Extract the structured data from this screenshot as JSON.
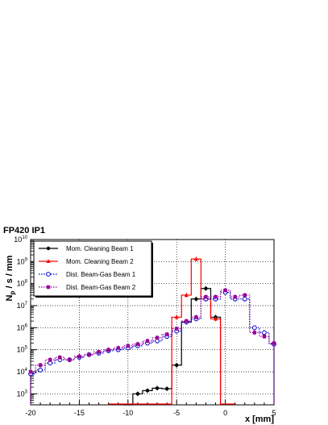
{
  "chart_data": {
    "type": "line",
    "title": "FP420 IP1",
    "xlabel": "x [mm]",
    "ylabel": "N_p / s / mm",
    "ylabel_main": "N",
    "ylabel_sub": "p",
    "ylabel_rest": " / s / mm",
    "xlim": [
      -20,
      5
    ],
    "ylim_log10": [
      2.5,
      10
    ],
    "log_y": true,
    "grid": true,
    "legend_position": "top-left",
    "x_ticks": [
      -20,
      -15,
      -10,
      -5,
      0,
      5
    ],
    "x_tick_labels": [
      "-20",
      "-15",
      "-10",
      "-5",
      "0",
      "5"
    ],
    "y_ticks_exp": [
      3,
      4,
      5,
      6,
      7,
      8,
      9,
      10
    ],
    "y_tick_base": "10",
    "series": [
      {
        "name": "Mom. Cleaning Beam 1",
        "color": "#000000",
        "marker": "circle-filled",
        "style": "solid",
        "bin_width": 1,
        "x": [
          -10,
          -9,
          -8,
          -7,
          -6,
          -5,
          -4,
          -3,
          -2,
          -1
        ],
        "y": [
          300,
          1000,
          1400,
          1800,
          1700,
          20000,
          1800000,
          20000000,
          60000000,
          3000000
        ]
      },
      {
        "name": "Mom. Cleaning Beam 2",
        "color": "#ff0000",
        "marker": "triangle-filled",
        "style": "solid",
        "bin_width": 1,
        "x": [
          -5,
          -4,
          -3,
          -2,
          -1
        ],
        "y": [
          3000000,
          30000000,
          1300000000,
          20000000,
          2500000
        ]
      },
      {
        "name": "Dist. Beam-Gas Beam 1",
        "color": "#0000cc",
        "marker": "circle-open",
        "style": "dotted",
        "bin_width": 1,
        "x": [
          -20,
          -19,
          -18,
          -17,
          -16,
          -15,
          -14,
          -13,
          -12,
          -11,
          -10,
          -9,
          -8,
          -7,
          -6,
          -5,
          -4,
          -3,
          -2,
          -1,
          0,
          1,
          2,
          3,
          4,
          5
        ],
        "y": [
          8000,
          12000,
          25000,
          35000,
          35000,
          45000,
          60000,
          70000,
          90000,
          100000,
          120000,
          150000,
          200000,
          250000,
          400000,
          700000,
          1800000,
          2500000,
          20000000,
          20000000,
          40000000,
          20000000,
          20000000,
          1000000,
          600000,
          180000
        ]
      },
      {
        "name": "Dist. Beam-Gas Beam 2",
        "color": "#990099",
        "marker": "square-filled",
        "style": "dotted",
        "bin_width": 1,
        "x": [
          -20,
          -19,
          -18,
          -17,
          -16,
          -15,
          -14,
          -13,
          -12,
          -11,
          -10,
          -9,
          -8,
          -7,
          -6,
          -5,
          -4,
          -3,
          -2,
          -1,
          0,
          1,
          2,
          3,
          4,
          5
        ],
        "y": [
          10000,
          20000,
          35000,
          45000,
          35000,
          50000,
          60000,
          80000,
          100000,
          120000,
          150000,
          180000,
          250000,
          350000,
          500000,
          900000,
          2000000,
          3000000,
          25000000,
          25000000,
          50000000,
          25000000,
          30000000,
          600000,
          400000,
          200000
        ]
      }
    ]
  }
}
